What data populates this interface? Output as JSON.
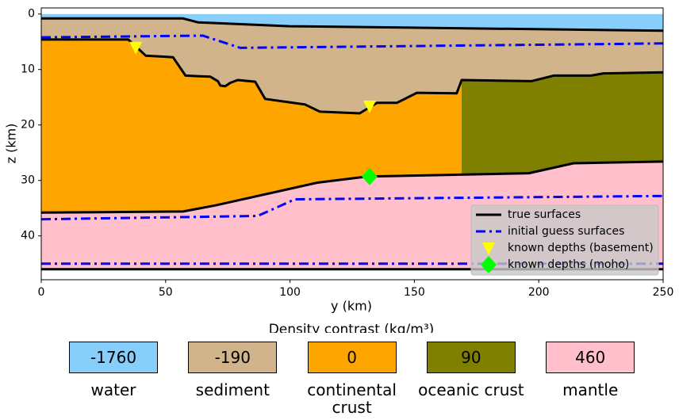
{
  "chart_data": {
    "type": "cross-section",
    "xlabel": "y (km)",
    "ylabel": "z (km)",
    "xlim": [
      0,
      250
    ],
    "ylim": [
      -1.1,
      47.9
    ],
    "inverted_y": true,
    "xticks": [
      0,
      50,
      100,
      150,
      200,
      250
    ],
    "yticks": [
      0,
      10,
      20,
      30,
      40
    ],
    "series": [
      {
        "name": "true surfaces",
        "color": "#000000",
        "dash": "solid",
        "surfaces": [
          {
            "x": [
              0,
              57,
              63,
              100,
              250
            ],
            "values": [
              0.8,
              0.8,
              1.5,
              2.2,
              3.0
            ]
          },
          {
            "x": [
              0,
              35,
              42,
              50,
              53,
              58,
              68,
              71,
              72,
              74,
              76,
              79,
              86,
              90,
              106,
              112,
              128,
              135,
              143,
              151,
              167,
              169,
              197,
              206,
              221,
              226,
              250
            ],
            "values": [
              4.6,
              4.6,
              7.5,
              7.7,
              7.8,
              11.1,
              11.3,
              12.1,
              12.9,
              13.0,
              12.4,
              11.9,
              12.2,
              15.3,
              16.3,
              17.6,
              17.9,
              16.0,
              16.0,
              14.2,
              14.3,
              11.9,
              12.1,
              11.1,
              11.1,
              10.7,
              10.5
            ]
          },
          {
            "x": [
              0,
              57,
              70,
              111,
              131,
              196,
              214,
              250
            ],
            "values": [
              35.8,
              35.6,
              34.5,
              30.4,
              29.3,
              28.7,
              26.9,
              26.6
            ]
          },
          {
            "x": [
              0,
              250
            ],
            "values": [
              46.0,
              46.0
            ]
          }
        ]
      },
      {
        "name": "initial guess surfaces",
        "color": "#0000ff",
        "dash": "dashdot",
        "surfaces": [
          {
            "x": [
              0,
              65,
              80,
              250
            ],
            "values": [
              4.2,
              3.9,
              6.1,
              5.3
            ]
          },
          {
            "x": [
              0,
              87,
              102,
              250
            ],
            "values": [
              37.0,
              36.4,
              33.4,
              32.8
            ]
          },
          {
            "x": [
              0,
              250
            ],
            "values": [
              45.0,
              45.0
            ]
          }
        ]
      }
    ],
    "markers": [
      {
        "name": "known depths (basement)",
        "color": "#ffff00",
        "shape": "triangle",
        "x": [
          38,
          132
        ],
        "values": [
          6.0,
          16.6
        ]
      },
      {
        "name": "known depths (moho)",
        "color": "#00ff00",
        "shape": "diamond",
        "x": [
          132
        ],
        "values": [
          29.3
        ]
      }
    ],
    "water_top": 0,
    "oceanic_xrange": [
      169,
      250
    ],
    "density_title": "Density contrast (kg/m³)",
    "layers": [
      {
        "name": "water",
        "color": "#87cefa",
        "density": -1760
      },
      {
        "name": "sediment",
        "color": "#d2b48c",
        "density": -190
      },
      {
        "name": "continental crust",
        "color": "#ffa500",
        "density": 0
      },
      {
        "name": "oceanic crust",
        "color": "#808000",
        "density": 90
      },
      {
        "name": "mantle",
        "color": "#ffc0cb",
        "density": 460
      }
    ]
  }
}
